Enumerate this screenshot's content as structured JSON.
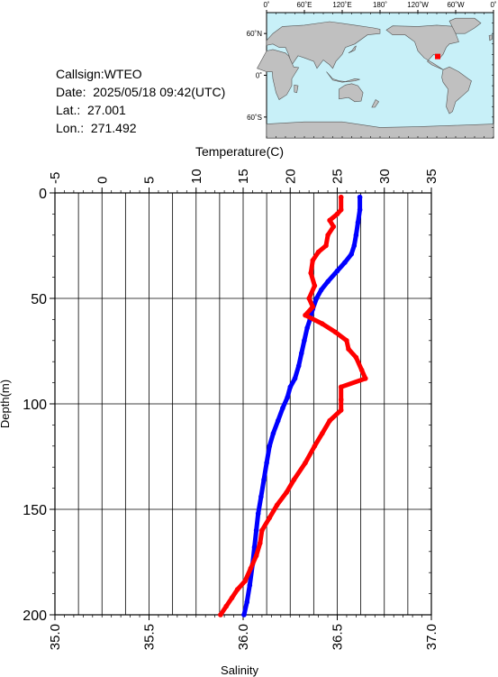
{
  "info": {
    "callsign": "Callsign:WTEO",
    "date": "Date:  2025/05/18 09:42(UTC)",
    "lat": "Lat.:  27.001",
    "lon": "Lon.:  271.492"
  },
  "map": {
    "top_ticks": [
      "0˚",
      "60˚E",
      "120˚E",
      "180˚",
      "120˚W",
      "60˚W",
      "0˚"
    ],
    "left_ticks": [
      "60˚N",
      "0˚",
      "60˚S"
    ],
    "ocean_color": "#c8f0f8",
    "land_color": "#c0c0c0",
    "marker_color": "#ff0000",
    "marker": {
      "lon_east": 271.492,
      "lat": 27.001
    }
  },
  "chart_data": {
    "type": "line",
    "title": "",
    "top_axis": {
      "label": "Temperature(C)",
      "range": [
        -5,
        35
      ],
      "ticks": [
        "-5",
        "0",
        "5",
        "10",
        "15",
        "20",
        "25",
        "30",
        "35"
      ]
    },
    "bottom_axis": {
      "label": "Salinity",
      "range": [
        35.0,
        37.0
      ],
      "ticks": [
        "35.0",
        "35.5",
        "36.0",
        "36.5",
        "37.0"
      ]
    },
    "y_axis": {
      "label": "Depth(m)",
      "range": [
        0,
        200
      ],
      "inverted": true,
      "ticks": [
        "0",
        "50",
        "100",
        "150",
        "200"
      ]
    },
    "grid": true,
    "series": [
      {
        "key": "temperature",
        "color": "#0000ff",
        "points": [
          [
            27.4,
            2
          ],
          [
            27.4,
            8
          ],
          [
            27.2,
            14
          ],
          [
            27.0,
            20
          ],
          [
            26.8,
            25
          ],
          [
            26.5,
            29
          ],
          [
            25.8,
            33
          ],
          [
            25.0,
            37
          ],
          [
            24.0,
            42
          ],
          [
            23.3,
            46
          ],
          [
            22.8,
            50
          ],
          [
            22.4,
            55
          ],
          [
            22.1,
            60
          ],
          [
            21.8,
            64
          ],
          [
            21.5,
            70
          ],
          [
            21.2,
            76
          ],
          [
            20.9,
            82
          ],
          [
            20.5,
            88
          ],
          [
            20.0,
            92
          ],
          [
            19.7,
            97
          ],
          [
            19.2,
            102
          ],
          [
            18.7,
            108
          ],
          [
            18.2,
            114
          ],
          [
            17.8,
            120
          ],
          [
            17.5,
            128
          ],
          [
            17.2,
            136
          ],
          [
            16.9,
            144
          ],
          [
            16.6,
            152
          ],
          [
            16.4,
            160
          ],
          [
            16.2,
            168
          ],
          [
            16.0,
            176
          ],
          [
            15.7,
            186
          ],
          [
            15.4,
            194
          ],
          [
            15.1,
            200
          ]
        ]
      },
      {
        "key": "salinity",
        "color": "#ff0000",
        "points": [
          [
            36.52,
            2
          ],
          [
            36.52,
            8
          ],
          [
            36.5,
            10
          ],
          [
            36.46,
            13
          ],
          [
            36.48,
            16
          ],
          [
            36.45,
            20
          ],
          [
            36.44,
            25
          ],
          [
            36.4,
            28
          ],
          [
            36.37,
            32
          ],
          [
            36.36,
            38
          ],
          [
            36.38,
            44
          ],
          [
            36.35,
            50
          ],
          [
            36.37,
            54
          ],
          [
            36.33,
            58
          ],
          [
            36.42,
            62
          ],
          [
            36.49,
            66
          ],
          [
            36.55,
            70
          ],
          [
            36.56,
            74
          ],
          [
            36.6,
            78
          ],
          [
            36.63,
            84
          ],
          [
            36.65,
            88
          ],
          [
            36.52,
            92
          ],
          [
            36.52,
            98
          ],
          [
            36.52,
            103
          ],
          [
            36.46,
            108
          ],
          [
            36.42,
            114
          ],
          [
            36.38,
            120
          ],
          [
            36.33,
            128
          ],
          [
            36.27,
            136
          ],
          [
            36.23,
            142
          ],
          [
            36.18,
            148
          ],
          [
            36.14,
            154
          ],
          [
            36.1,
            160
          ],
          [
            36.09,
            166
          ],
          [
            36.07,
            172
          ],
          [
            36.04,
            178
          ],
          [
            36.01,
            184
          ],
          [
            35.97,
            188
          ],
          [
            35.94,
            192
          ],
          [
            35.91,
            196
          ],
          [
            35.88,
            200
          ]
        ]
      }
    ]
  }
}
